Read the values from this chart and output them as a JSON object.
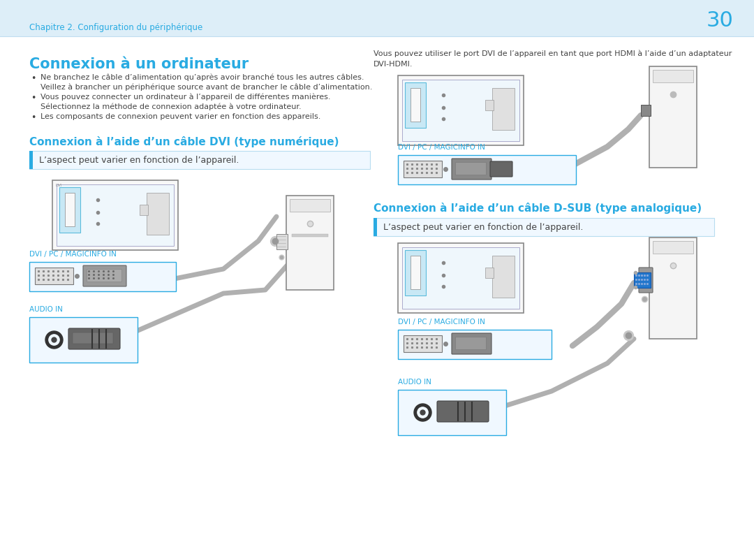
{
  "page_number": "30",
  "header_text": "Chapitre 2. Configuration du périphérique",
  "header_bg": "#ddeef8",
  "header_line_color": "#c0ddf0",
  "bg_color": "#ffffff",
  "cyan_color": "#29abe2",
  "text_color": "#444444",
  "small_text_color": "#555555",
  "title_left": "Connexion à un ordinateur",
  "bullets": [
    "Ne branchez le câble d’alimentation qu’après avoir branché tous les autres câbles.",
    "   Veillez à brancher un périphérique source avant de brancher le câble d’alimentation.",
    "Vous pouvez connecter un ordinateur à l’appareil de différentes manières.",
    "   Sélectionnez la méthode de connexion adaptée à votre ordinateur.",
    "Les composants de connexion peuvent varier en fonction des appareils."
  ],
  "subtitle_dvi": "Connexion à l’aide d’un câble DVI (type numérique)",
  "note_text": "L’aspect peut varier en fonction de l’appareil.",
  "label_dvi": "DVI / PC / MAGICINFO IN",
  "label_audio": "AUDIO IN",
  "right_top_text_l1": "Vous pouvez utiliser le port DVI de l’appareil en tant que port HDMI à l’aide d’un adaptateur",
  "right_top_text_l2": "DVI-HDMI.",
  "subtitle_dsub": "Connexion à l’aide d’un câble D-SUB (type analogique)",
  "note_text2": "L’aspect peut varier en fonction de l’appareil.",
  "label_dvi2": "DVI / PC / MAGICINFO IN",
  "label_dvi3": "DVI / PC / MAGICINFO IN",
  "label_audio2": "AUDIO IN"
}
